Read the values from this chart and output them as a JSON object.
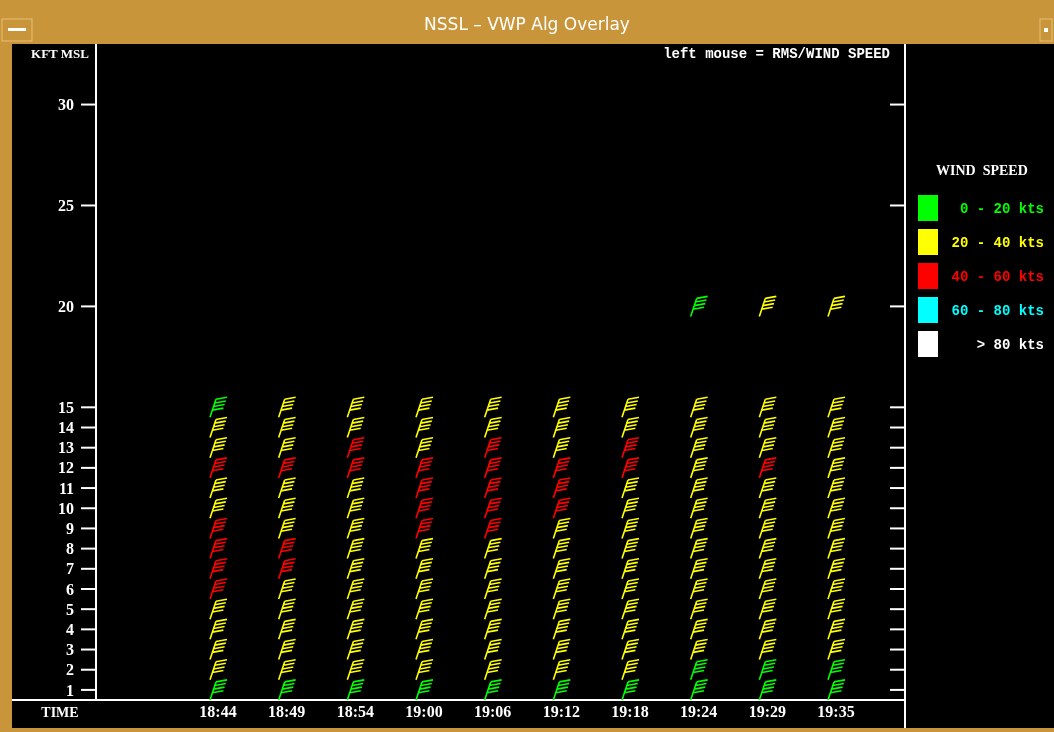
{
  "chart_data": {
    "type": "scatter",
    "title": "NSSL – VWP Alg Overlay",
    "ylabel": "KFT MSL",
    "xlabel": "TIME",
    "legend_title": "WIND  SPEED",
    "annotations": [
      "left mouse = RMS/WIND SPEED"
    ],
    "categories": [
      "18:44",
      "18:49",
      "18:54",
      "19:00",
      "19:06",
      "19:12",
      "19:18",
      "19:24",
      "19:29",
      "19:35"
    ],
    "ylim": [
      0.5,
      33
    ],
    "yticks": [
      1,
      2,
      3,
      4,
      5,
      6,
      7,
      8,
      9,
      10,
      11,
      12,
      13,
      14,
      15,
      20,
      25,
      30
    ],
    "legend": "right",
    "series": [
      {
        "name": "0 - 20 kts",
        "color": "#00ff00",
        "x": [
          "18:44",
          "18:49",
          "18:54",
          "19:00",
          "19:06",
          "19:12",
          "19:18",
          "19:24",
          "19:29",
          "19:35",
          "19:24",
          "19:29",
          "19:35",
          "18:44",
          "19:24"
        ],
        "values": [
          1,
          1,
          1,
          1,
          1,
          1,
          1,
          1,
          1,
          1,
          2,
          2,
          2,
          15,
          20
        ]
      },
      {
        "name": "20 - 40 kts",
        "color": "#ffff00",
        "x": [
          "18:44",
          "18:44",
          "18:44",
          "18:44",
          "18:44",
          "18:44",
          "18:44",
          "18:44",
          "18:49",
          "18:49",
          "18:49",
          "18:49",
          "18:49",
          "18:49",
          "18:49",
          "18:49",
          "18:49",
          "18:49",
          "18:49",
          "18:54",
          "18:54",
          "18:54",
          "18:54",
          "18:54",
          "18:54",
          "18:54",
          "18:54",
          "18:54",
          "18:54",
          "18:54",
          "18:54",
          "19:00",
          "19:00",
          "19:00",
          "19:00",
          "19:00",
          "19:00",
          "19:00",
          "19:00",
          "19:00",
          "19:00",
          "19:06",
          "19:06",
          "19:06",
          "19:06",
          "19:06",
          "19:06",
          "19:06",
          "19:06",
          "19:06",
          "19:12",
          "19:12",
          "19:12",
          "19:12",
          "19:12",
          "19:12",
          "19:12",
          "19:12",
          "19:12",
          "19:12",
          "19:12",
          "19:18",
          "19:18",
          "19:18",
          "19:18",
          "19:18",
          "19:18",
          "19:18",
          "19:18",
          "19:18",
          "19:18",
          "19:18",
          "19:18",
          "19:24",
          "19:24",
          "19:24",
          "19:24",
          "19:24",
          "19:24",
          "19:24",
          "19:24",
          "19:24",
          "19:24",
          "19:24",
          "19:24",
          "19:24",
          "19:29",
          "19:29",
          "19:29",
          "19:29",
          "19:29",
          "19:29",
          "19:29",
          "19:29",
          "19:29",
          "19:29",
          "19:29",
          "19:29",
          "19:29",
          "19:35",
          "19:35",
          "19:35",
          "19:35",
          "19:35",
          "19:35",
          "19:35",
          "19:35",
          "19:35",
          "19:35",
          "19:35",
          "19:35",
          "19:35",
          "19:35"
        ],
        "values": [
          2,
          3,
          4,
          5,
          10,
          11,
          13,
          14,
          2,
          3,
          4,
          5,
          6,
          9,
          10,
          11,
          13,
          14,
          15,
          2,
          3,
          4,
          5,
          6,
          7,
          8,
          9,
          10,
          11,
          14,
          15,
          2,
          3,
          4,
          5,
          6,
          7,
          8,
          13,
          14,
          15,
          2,
          3,
          4,
          5,
          6,
          7,
          8,
          14,
          15,
          2,
          3,
          4,
          5,
          6,
          7,
          8,
          9,
          13,
          14,
          15,
          2,
          3,
          4,
          5,
          6,
          7,
          8,
          9,
          10,
          11,
          14,
          15,
          3,
          4,
          5,
          6,
          7,
          8,
          9,
          10,
          11,
          12,
          13,
          14,
          15,
          3,
          4,
          5,
          6,
          7,
          8,
          9,
          10,
          11,
          13,
          14,
          15,
          20,
          3,
          4,
          5,
          6,
          7,
          8,
          9,
          10,
          11,
          12,
          13,
          14,
          15,
          20
        ]
      },
      {
        "name": "40 - 60 kts",
        "color": "#ff0000",
        "x": [
          "18:44",
          "18:44",
          "18:44",
          "18:44",
          "18:44",
          "18:49",
          "18:49",
          "18:49",
          "18:54",
          "18:54",
          "19:00",
          "19:00",
          "19:00",
          "19:00",
          "19:06",
          "19:06",
          "19:06",
          "19:06",
          "19:06",
          "19:12",
          "19:12",
          "19:12",
          "19:18",
          "19:18",
          "19:29"
        ],
        "values": [
          6,
          7,
          8,
          9,
          12,
          7,
          8,
          12,
          12,
          13,
          9,
          10,
          11,
          12,
          9,
          10,
          11,
          12,
          13,
          10,
          11,
          12,
          12,
          13,
          12
        ]
      },
      {
        "name": "60 - 80 kts",
        "color": "#00ffff",
        "values": [
          null,
          null,
          null,
          null,
          null,
          null,
          null,
          null,
          null,
          null
        ]
      },
      {
        "name": "> 80 kts",
        "color": "#ffffff",
        "values": [
          null,
          null,
          null,
          null,
          null,
          null,
          null,
          null,
          null,
          null
        ]
      }
    ]
  }
}
